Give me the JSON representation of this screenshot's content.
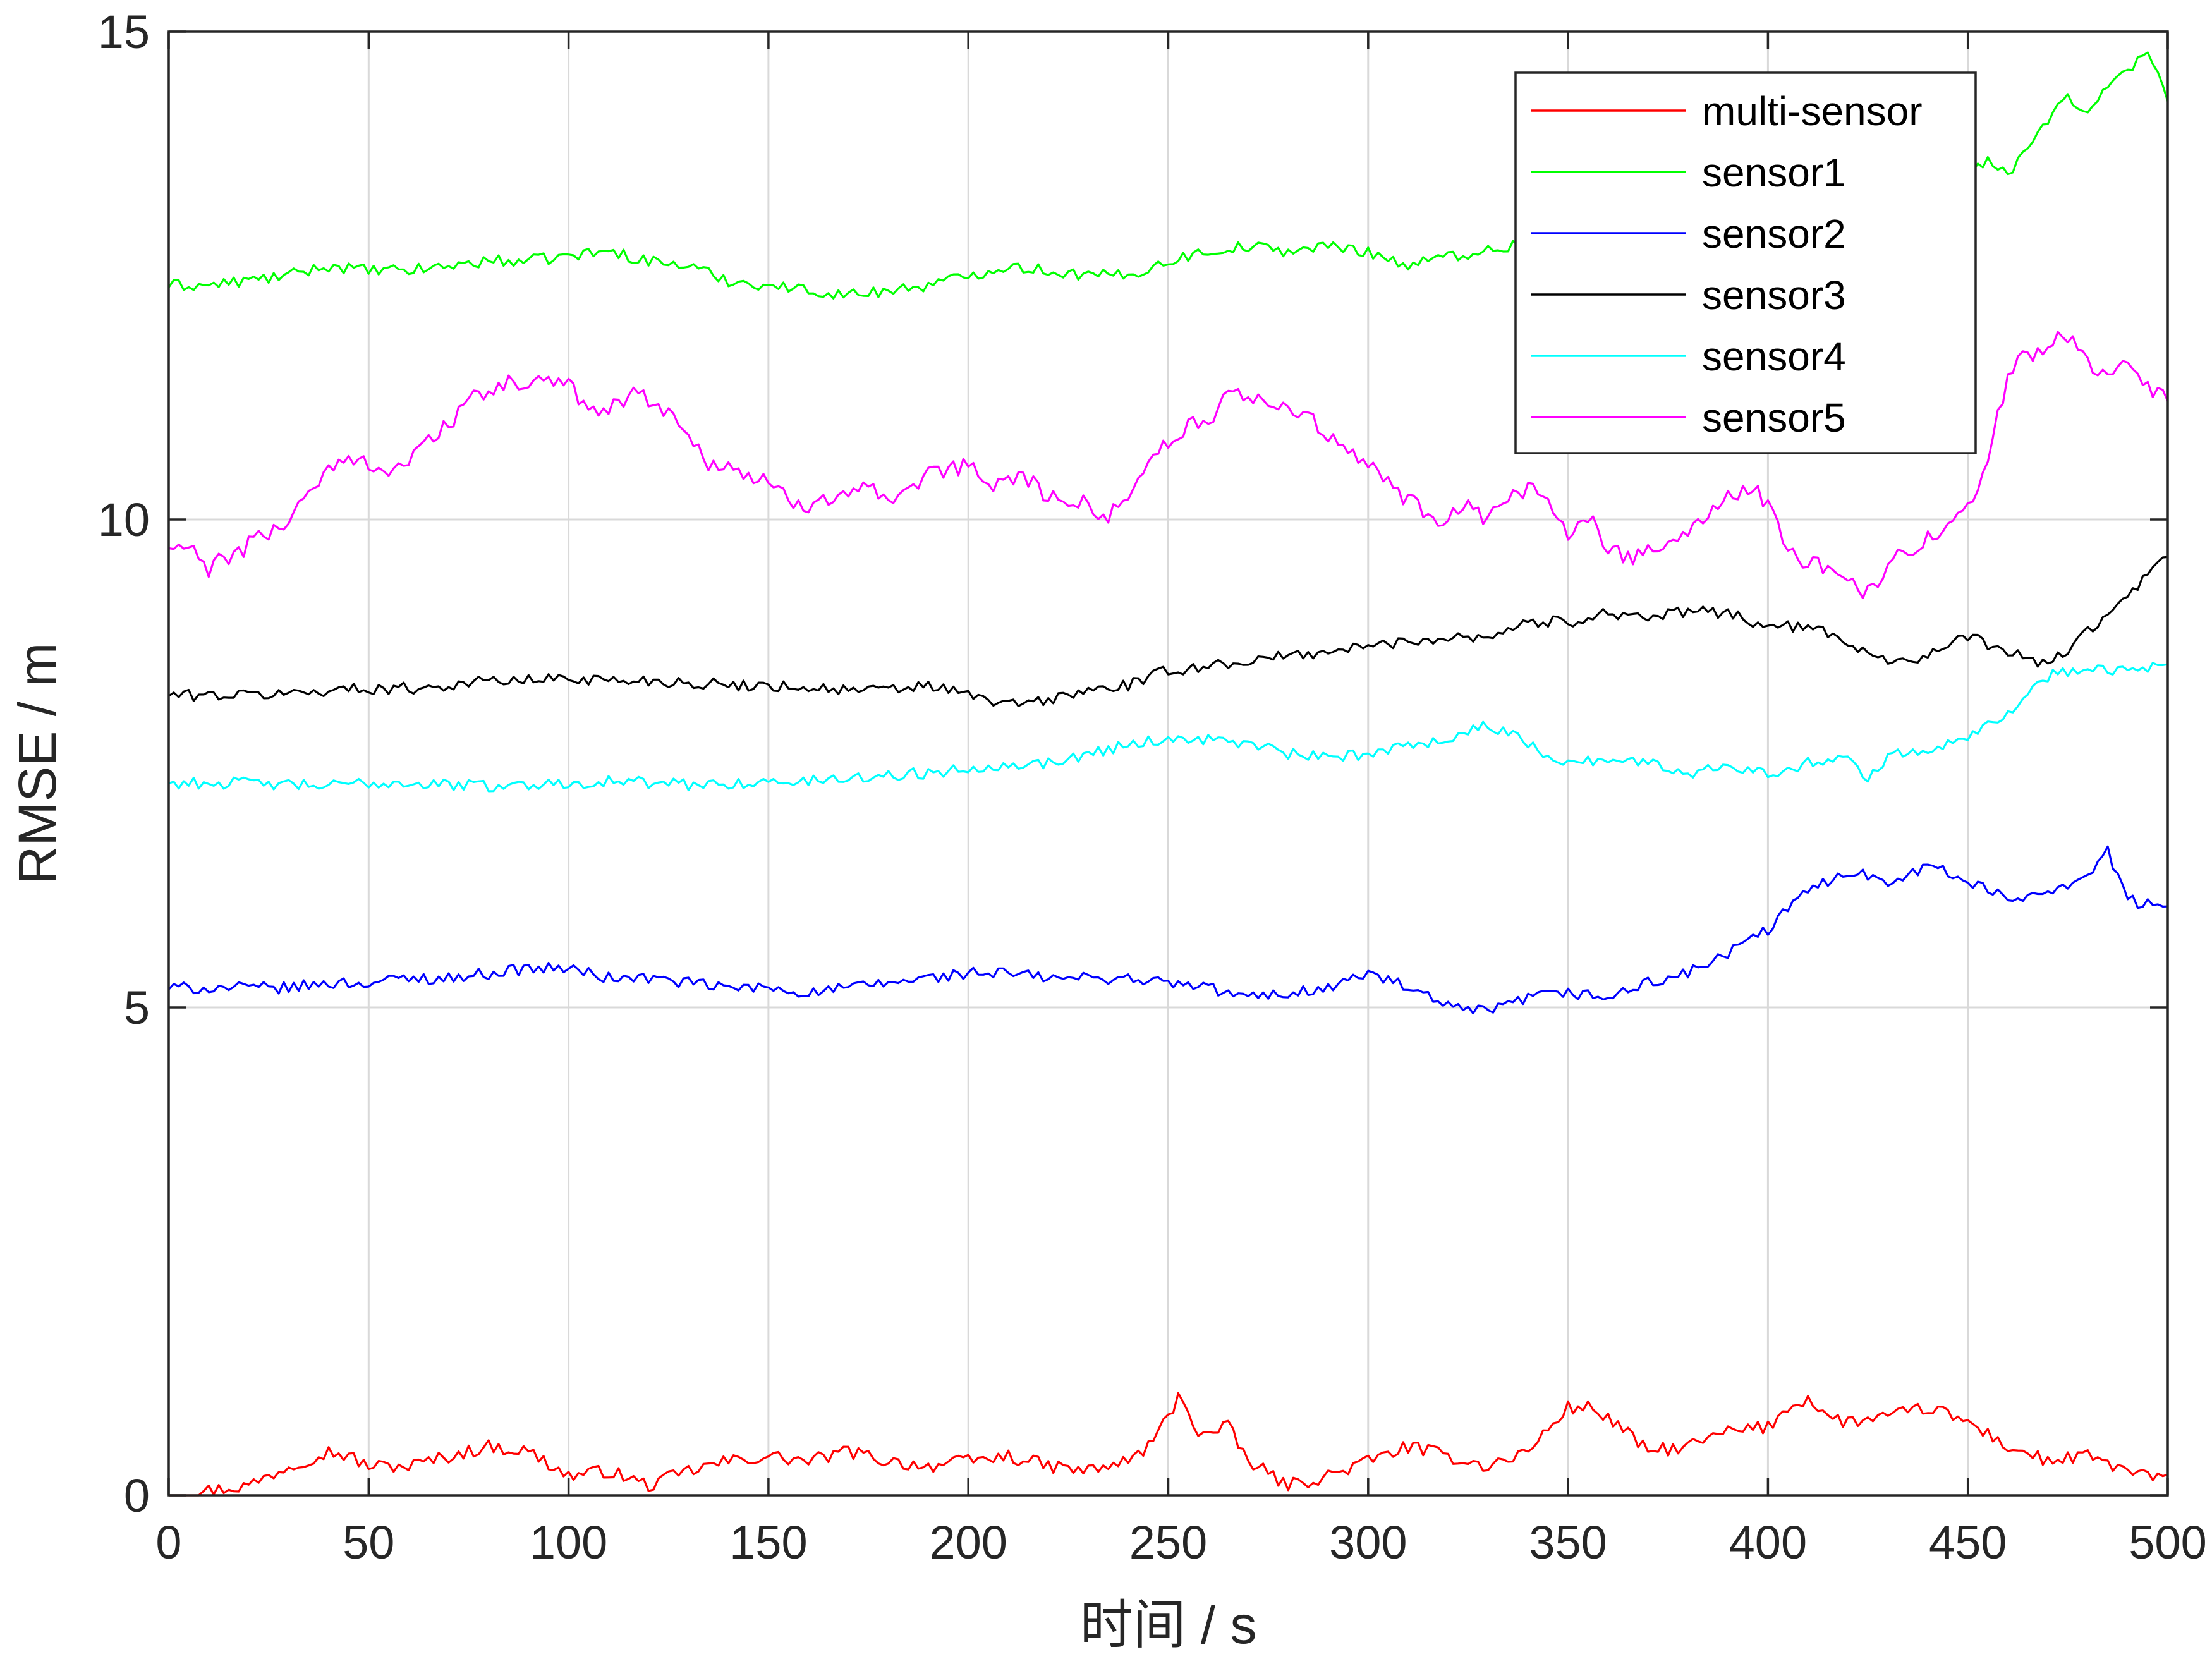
{
  "chart_data": {
    "type": "line",
    "title": "",
    "xlabel": "时间 / s",
    "ylabel": "RMSE / m",
    "xlim": [
      0,
      500
    ],
    "ylim": [
      0,
      15
    ],
    "xticks": [
      0,
      50,
      100,
      150,
      200,
      250,
      300,
      350,
      400,
      450,
      500
    ],
    "yticks": [
      0,
      5,
      10,
      15
    ],
    "grid": true,
    "legend_position": "top-right",
    "series": [
      {
        "name": "multi-sensor",
        "color": "#ff0000",
        "x": [
          0,
          10,
          20,
          30,
          40,
          45,
          50,
          60,
          70,
          80,
          90,
          100,
          110,
          120,
          130,
          140,
          150,
          160,
          170,
          180,
          190,
          200,
          210,
          220,
          230,
          240,
          245,
          250,
          253,
          258,
          265,
          270,
          280,
          290,
          300,
          310,
          320,
          330,
          340,
          350,
          355,
          360,
          370,
          380,
          390,
          400,
          405,
          410,
          415,
          420,
          430,
          440,
          450,
          460,
          470,
          480,
          490,
          500
        ],
        "y": [
          0.0,
          0.05,
          0.1,
          0.3,
          0.45,
          0.4,
          0.3,
          0.3,
          0.4,
          0.5,
          0.45,
          0.2,
          0.25,
          0.1,
          0.25,
          0.35,
          0.4,
          0.35,
          0.45,
          0.35,
          0.3,
          0.35,
          0.4,
          0.3,
          0.25,
          0.35,
          0.5,
          0.8,
          1.05,
          0.6,
          0.7,
          0.35,
          0.1,
          0.2,
          0.35,
          0.5,
          0.4,
          0.3,
          0.45,
          0.9,
          0.9,
          0.8,
          0.45,
          0.5,
          0.65,
          0.7,
          0.9,
          1.0,
          0.8,
          0.75,
          0.8,
          0.9,
          0.75,
          0.5,
          0.35,
          0.4,
          0.25,
          0.15
        ]
      },
      {
        "name": "sensor1",
        "color": "#00ff00",
        "x": [
          0,
          10,
          20,
          30,
          40,
          50,
          60,
          70,
          80,
          90,
          100,
          110,
          120,
          130,
          140,
          150,
          160,
          170,
          180,
          190,
          200,
          210,
          220,
          230,
          240,
          250,
          260,
          270,
          280,
          290,
          300,
          310,
          320,
          330,
          340,
          350,
          360,
          370,
          380,
          390,
          400,
          410,
          420,
          430,
          440,
          450,
          455,
          460,
          465,
          470,
          475,
          480,
          485,
          490,
          495,
          500
        ],
        "y": [
          12.4,
          12.4,
          12.45,
          12.5,
          12.6,
          12.55,
          12.55,
          12.6,
          12.65,
          12.65,
          12.7,
          12.75,
          12.65,
          12.6,
          12.45,
          12.4,
          12.35,
          12.3,
          12.35,
          12.4,
          12.5,
          12.6,
          12.55,
          12.5,
          12.5,
          12.65,
          12.75,
          12.8,
          12.75,
          12.8,
          12.75,
          12.6,
          12.7,
          12.75,
          12.85,
          12.9,
          12.95,
          13.0,
          13.05,
          13.1,
          13.15,
          13.2,
          13.3,
          13.35,
          13.45,
          13.55,
          13.7,
          13.5,
          13.8,
          14.1,
          14.3,
          14.2,
          14.45,
          14.6,
          14.8,
          14.3
        ]
      },
      {
        "name": "sensor2",
        "color": "#0000ff",
        "x": [
          0,
          10,
          20,
          30,
          40,
          50,
          60,
          70,
          80,
          90,
          100,
          110,
          120,
          130,
          140,
          150,
          160,
          170,
          180,
          190,
          200,
          210,
          220,
          230,
          240,
          250,
          260,
          270,
          280,
          290,
          300,
          310,
          320,
          330,
          340,
          350,
          360,
          370,
          380,
          390,
          400,
          410,
          420,
          430,
          440,
          450,
          460,
          470,
          480,
          485,
          490,
          500
        ],
        "y": [
          5.2,
          5.2,
          5.2,
          5.2,
          5.25,
          5.25,
          5.3,
          5.3,
          5.35,
          5.4,
          5.4,
          5.3,
          5.3,
          5.25,
          5.2,
          5.2,
          5.15,
          5.2,
          5.25,
          5.3,
          5.35,
          5.35,
          5.3,
          5.3,
          5.3,
          5.25,
          5.2,
          5.1,
          5.15,
          5.2,
          5.35,
          5.2,
          5.0,
          4.95,
          5.1,
          5.15,
          5.1,
          5.25,
          5.35,
          5.55,
          5.8,
          6.2,
          6.4,
          6.3,
          6.45,
          6.3,
          6.1,
          6.2,
          6.35,
          6.6,
          6.1,
          6.0
        ]
      },
      {
        "name": "sensor3",
        "color": "#000000",
        "x": [
          0,
          10,
          20,
          30,
          40,
          50,
          60,
          70,
          80,
          90,
          100,
          110,
          120,
          130,
          140,
          150,
          160,
          170,
          180,
          190,
          200,
          210,
          220,
          230,
          240,
          250,
          260,
          270,
          280,
          290,
          300,
          310,
          320,
          330,
          340,
          350,
          360,
          370,
          380,
          390,
          400,
          410,
          420,
          430,
          440,
          450,
          460,
          470,
          480,
          490,
          500
        ],
        "y": [
          8.2,
          8.2,
          8.2,
          8.22,
          8.25,
          8.27,
          8.27,
          8.3,
          8.35,
          8.35,
          8.38,
          8.35,
          8.35,
          8.33,
          8.3,
          8.3,
          8.28,
          8.25,
          8.25,
          8.3,
          8.2,
          8.1,
          8.15,
          8.25,
          8.3,
          8.45,
          8.5,
          8.55,
          8.6,
          8.65,
          8.7,
          8.75,
          8.8,
          8.8,
          8.95,
          8.95,
          9.05,
          9.0,
          9.05,
          9.05,
          8.9,
          8.9,
          8.75,
          8.55,
          8.6,
          8.8,
          8.65,
          8.5,
          8.85,
          9.2,
          9.65
        ]
      },
      {
        "name": "sensor4",
        "color": "#00ffff",
        "x": [
          0,
          10,
          20,
          30,
          40,
          50,
          60,
          70,
          80,
          90,
          100,
          110,
          120,
          130,
          140,
          150,
          160,
          170,
          180,
          190,
          200,
          210,
          220,
          230,
          240,
          250,
          260,
          270,
          280,
          290,
          300,
          310,
          320,
          330,
          340,
          350,
          360,
          370,
          380,
          390,
          400,
          410,
          420,
          425,
          430,
          440,
          450,
          460,
          470,
          480,
          490,
          500
        ],
        "y": [
          7.3,
          7.3,
          7.3,
          7.28,
          7.27,
          7.3,
          7.3,
          7.28,
          7.27,
          7.28,
          7.3,
          7.32,
          7.3,
          7.28,
          7.3,
          7.3,
          7.32,
          7.35,
          7.38,
          7.4,
          7.45,
          7.5,
          7.5,
          7.6,
          7.7,
          7.75,
          7.75,
          7.7,
          7.6,
          7.55,
          7.6,
          7.7,
          7.75,
          7.9,
          7.7,
          7.5,
          7.55,
          7.5,
          7.4,
          7.5,
          7.4,
          7.5,
          7.6,
          7.3,
          7.6,
          7.65,
          7.8,
          8.0,
          8.4,
          8.5,
          8.45,
          8.5
        ]
      },
      {
        "name": "sensor5",
        "color": "#ff00ff",
        "x": [
          0,
          5,
          10,
          15,
          20,
          25,
          30,
          35,
          40,
          45,
          50,
          55,
          60,
          65,
          70,
          75,
          80,
          85,
          90,
          95,
          100,
          105,
          110,
          115,
          120,
          125,
          130,
          135,
          140,
          145,
          150,
          155,
          160,
          165,
          170,
          175,
          180,
          185,
          190,
          195,
          200,
          205,
          210,
          215,
          220,
          225,
          230,
          235,
          240,
          245,
          250,
          255,
          260,
          265,
          270,
          275,
          280,
          285,
          290,
          295,
          300,
          305,
          310,
          315,
          320,
          325,
          330,
          335,
          340,
          345,
          350,
          355,
          360,
          365,
          370,
          375,
          380,
          385,
          390,
          395,
          400,
          405,
          410,
          415,
          420,
          425,
          430,
          435,
          440,
          445,
          450,
          455,
          460,
          465,
          470,
          475,
          480,
          485,
          490,
          495,
          500
        ],
        "y": [
          9.7,
          9.7,
          9.5,
          9.6,
          9.75,
          9.85,
          10.0,
          10.3,
          10.5,
          10.6,
          10.6,
          10.5,
          10.6,
          10.8,
          11.0,
          11.2,
          11.3,
          11.4,
          11.4,
          11.4,
          11.35,
          11.2,
          11.1,
          11.3,
          11.25,
          11.1,
          10.85,
          10.6,
          10.55,
          10.45,
          10.35,
          10.2,
          10.15,
          10.25,
          10.3,
          10.35,
          10.1,
          10.25,
          10.45,
          10.5,
          10.55,
          10.35,
          10.45,
          10.4,
          10.25,
          10.15,
          10.15,
          10.05,
          10.2,
          10.65,
          10.8,
          10.95,
          11.0,
          11.25,
          11.3,
          11.2,
          11.15,
          11.05,
          10.85,
          10.65,
          10.55,
          10.4,
          10.2,
          10.05,
          10.0,
          10.1,
          9.95,
          10.25,
          10.3,
          10.2,
          9.85,
          10.0,
          9.75,
          9.6,
          9.7,
          9.75,
          9.9,
          10.1,
          10.2,
          10.35,
          10.15,
          9.75,
          9.55,
          9.5,
          9.4,
          9.25,
          9.5,
          9.7,
          9.8,
          9.9,
          10.1,
          10.6,
          11.5,
          11.7,
          11.8,
          11.9,
          11.65,
          11.45,
          11.6,
          11.35,
          11.3
        ]
      }
    ]
  }
}
